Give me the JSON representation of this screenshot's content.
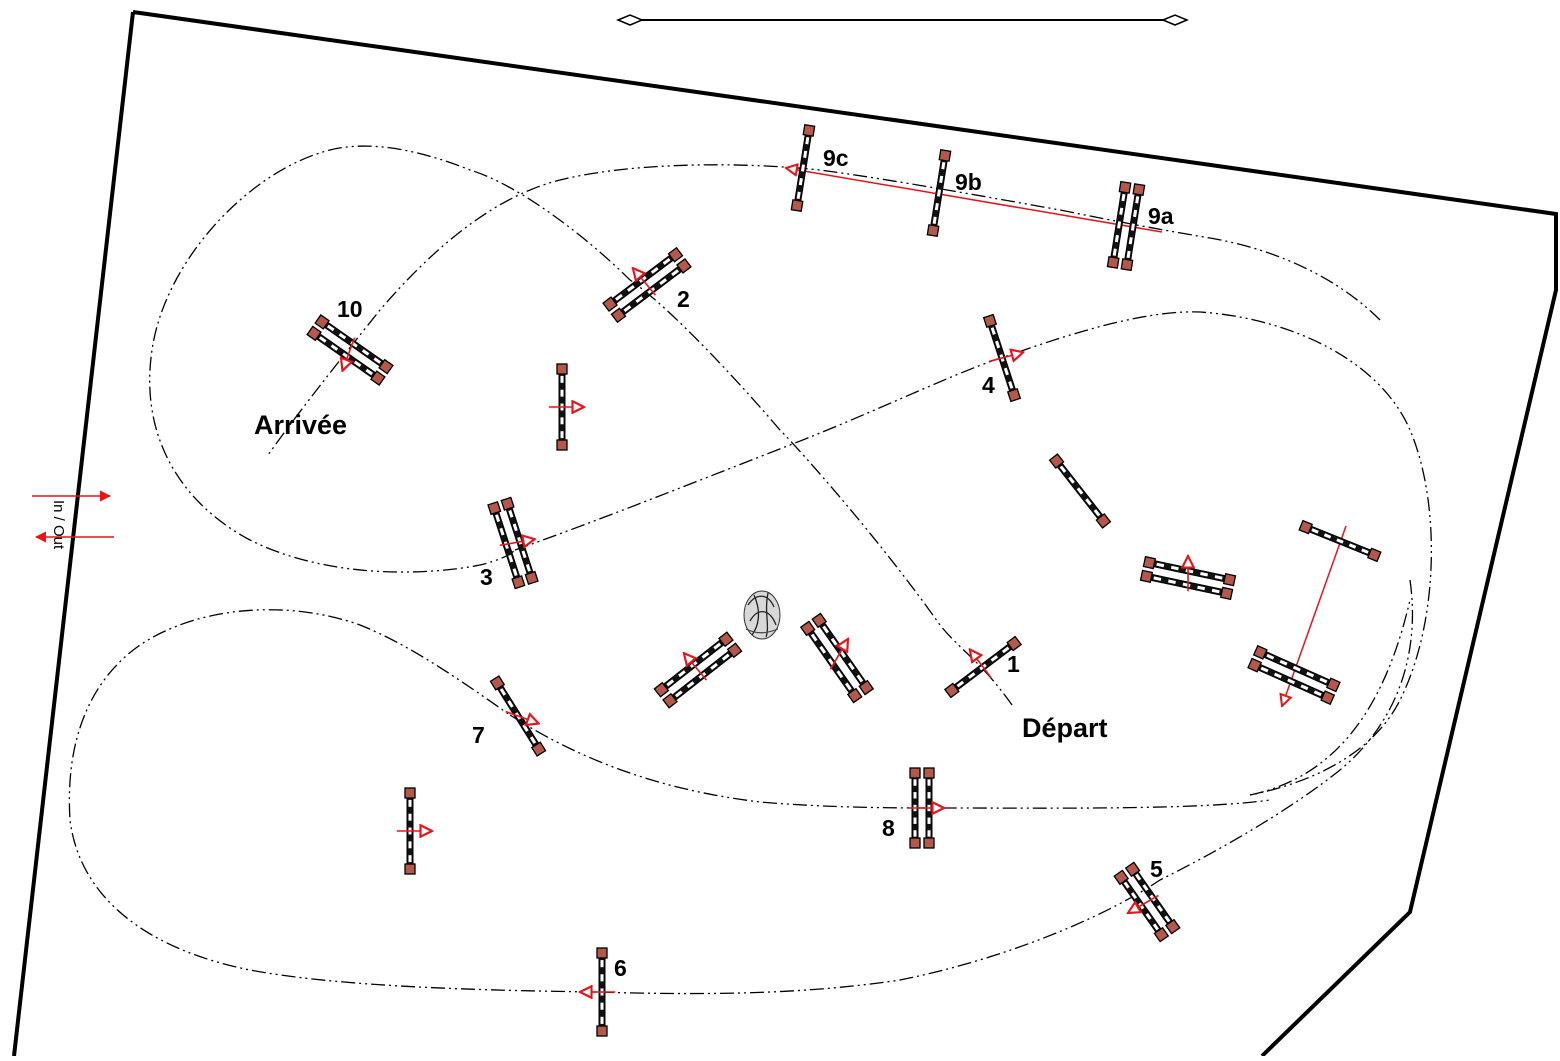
{
  "colors": {
    "rail_stand": "#b5584c",
    "direction": "#e8141a",
    "line": "#000000"
  },
  "labels": {
    "start": "Départ",
    "finish": "Arrivée",
    "in_out": "In / Out"
  },
  "obstacles": [
    {
      "id": "o1",
      "number": "1"
    },
    {
      "id": "o2",
      "number": "2"
    },
    {
      "id": "o3",
      "number": "3"
    },
    {
      "id": "o4",
      "number": "4"
    },
    {
      "id": "o5",
      "number": "5"
    },
    {
      "id": "o6",
      "number": "6"
    },
    {
      "id": "o7",
      "number": "7"
    },
    {
      "id": "o8",
      "number": "8"
    },
    {
      "id": "o9a",
      "number": "9a"
    },
    {
      "id": "o9b",
      "number": "9b"
    },
    {
      "id": "o9c",
      "number": "9c"
    },
    {
      "id": "o10",
      "number": "10"
    }
  ],
  "icons": {
    "decoration": "plant-decoration-icon",
    "scale": "scale-bar-icon"
  }
}
